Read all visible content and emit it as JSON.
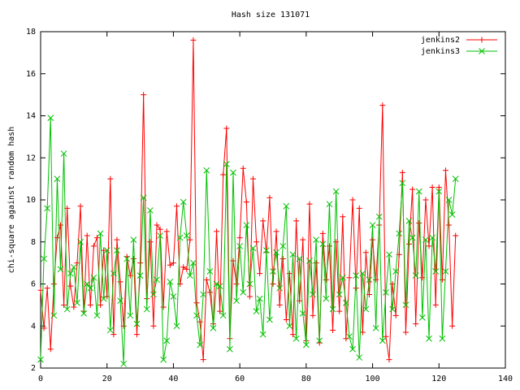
{
  "chart_data": {
    "type": "line",
    "title": "Hash size 131071",
    "y_label": "chi-square against random hash",
    "x": [
      0,
      1,
      2,
      3,
      4,
      5,
      6,
      7,
      8,
      9,
      10,
      11,
      12,
      13,
      14,
      15,
      16,
      17,
      18,
      19,
      20,
      21,
      22,
      23,
      24,
      25,
      26,
      27,
      28,
      29,
      30,
      31,
      32,
      33,
      34,
      35,
      36,
      37,
      38,
      39,
      40,
      41,
      42,
      43,
      44,
      45,
      46,
      47,
      48,
      49,
      50,
      51,
      52,
      53,
      54,
      55,
      56,
      57,
      58,
      59,
      60,
      61,
      62,
      63,
      64,
      65,
      66,
      67,
      68,
      69,
      70,
      71,
      72,
      73,
      74,
      75,
      76,
      77,
      78,
      79,
      80,
      81,
      82,
      83,
      84,
      85,
      86,
      87,
      88,
      89,
      90,
      91,
      92,
      93,
      94,
      95,
      96,
      97,
      98,
      99,
      100,
      101,
      102,
      103,
      104,
      105,
      106,
      107,
      108,
      109,
      110,
      111,
      112,
      113,
      114,
      115,
      116,
      117,
      118,
      119,
      120,
      121,
      122,
      123,
      124,
      125
    ],
    "series": [
      {
        "name": "jenkins2",
        "color": "#ff0000",
        "marker": "plus",
        "values": [
          5.7,
          3.9,
          5.8,
          2.9,
          6.0,
          8.2,
          8.8,
          5.0,
          9.6,
          5.9,
          4.9,
          7.0,
          9.7,
          4.7,
          8.3,
          5.0,
          7.8,
          8.2,
          5.0,
          7.6,
          5.4,
          11.0,
          3.6,
          8.1,
          6.1,
          4.0,
          7.3,
          6.4,
          7.2,
          3.6,
          7.0,
          15.0,
          5.3,
          8.0,
          4.0,
          8.8,
          8.6,
          4.9,
          8.5,
          6.9,
          7.0,
          9.7,
          6.0,
          6.8,
          6.7,
          8.1,
          17.6,
          5.1,
          4.2,
          2.4,
          6.2,
          5.6,
          4.1,
          8.5,
          4.7,
          11.2,
          13.4,
          3.4,
          7.1,
          6.0,
          8.2,
          11.5,
          9.9,
          5.4,
          11.0,
          8.0,
          6.5,
          9.0,
          7.5,
          10.1,
          6.0,
          8.5,
          5.0,
          7.2,
          4.3,
          6.5,
          3.6,
          9.0,
          5.2,
          8.1,
          3.3,
          9.8,
          4.5,
          7.0,
          3.2,
          8.4,
          6.2,
          7.8,
          3.8,
          8.0,
          4.7,
          9.2,
          3.4,
          6.3,
          10.0,
          5.8,
          9.6,
          3.7,
          7.5,
          5.5,
          8.1,
          6.2,
          8.8,
          14.5,
          3.5,
          2.4,
          6.0,
          4.5,
          7.4,
          11.3,
          3.7,
          7.9,
          10.5,
          4.1,
          8.9,
          6.3,
          10.0,
          7.8,
          10.6,
          5.0,
          10.6,
          6.2,
          11.4,
          8.8,
          4.0,
          8.3
        ]
      },
      {
        "name": "jenkins3",
        "color": "#00c000",
        "marker": "cross",
        "values": [
          2.4,
          7.2,
          9.6,
          13.9,
          4.5,
          11.0,
          6.7,
          12.2,
          4.8,
          6.5,
          6.8,
          5.1,
          8.0,
          4.6,
          6.0,
          5.8,
          6.3,
          4.5,
          8.4,
          5.3,
          7.6,
          3.8,
          6.5,
          7.6,
          5.2,
          2.2,
          7.2,
          4.5,
          8.1,
          4.1,
          6.4,
          10.1,
          4.8,
          9.5,
          5.5,
          6.2,
          8.3,
          2.4,
          3.3,
          6.1,
          5.4,
          4.0,
          8.2,
          9.9,
          8.3,
          6.4,
          7.0,
          4.5,
          3.1,
          5.5,
          11.4,
          6.6,
          3.9,
          6.0,
          5.9,
          4.5,
          11.7,
          2.9,
          11.3,
          5.2,
          7.8,
          5.6,
          8.8,
          6.0,
          7.7,
          4.7,
          5.3,
          3.6,
          7.6,
          4.3,
          6.6,
          7.5,
          5.8,
          7.8,
          9.7,
          4.0,
          7.4,
          3.4,
          7.2,
          4.6,
          3.1,
          7.1,
          5.5,
          8.1,
          3.3,
          7.9,
          5.3,
          9.8,
          4.8,
          10.4,
          5.5,
          6.3,
          5.1,
          3.5,
          2.9,
          6.4,
          2.5,
          6.5,
          4.8,
          6.2,
          8.8,
          3.9,
          9.2,
          3.3,
          5.6,
          7.4,
          4.8,
          6.6,
          8.4,
          10.8,
          5.0,
          9.0,
          8.2,
          6.4,
          10.4,
          4.4,
          8.1,
          3.4,
          8.2,
          6.6,
          10.4,
          3.4,
          6.6,
          10.0,
          9.3,
          11.0
        ]
      }
    ],
    "xlim": [
      0,
      140
    ],
    "xticks": [
      0,
      20,
      40,
      60,
      80,
      100,
      120,
      140
    ],
    "ylim": [
      2,
      18
    ],
    "yticks": [
      2,
      4,
      6,
      8,
      10,
      12,
      14,
      16,
      18
    ],
    "legend": "top-right"
  }
}
